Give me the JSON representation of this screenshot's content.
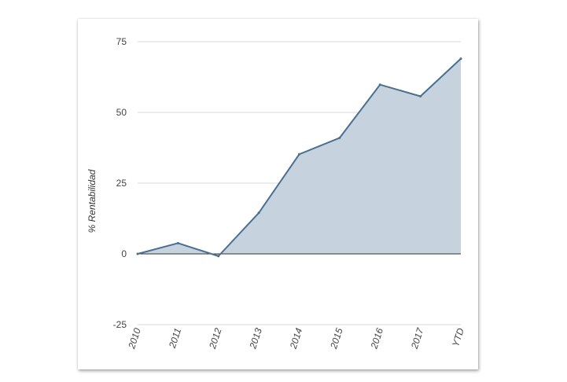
{
  "chart_data": {
    "type": "area",
    "title": "",
    "xlabel": "",
    "ylabel": "% Rentabilidad",
    "categories": [
      "2010",
      "2011",
      "2012",
      "2013",
      "2014",
      "2015",
      "2016",
      "2017",
      "YTD"
    ],
    "series": [
      {
        "values": [
          0,
          3.8,
          -0.8,
          14.5,
          35.2,
          41.0,
          59.8,
          55.7,
          69.0
        ]
      }
    ],
    "ylim": [
      -25,
      75
    ],
    "yticks": [
      "-25",
      "0",
      "25",
      "50",
      "75"
    ],
    "grid": true,
    "legend": "none",
    "colors": {
      "line": "#4a6f8f",
      "fill": "#c6d3df",
      "grid": "#d8d8d8",
      "zero_line": "#333333"
    }
  }
}
